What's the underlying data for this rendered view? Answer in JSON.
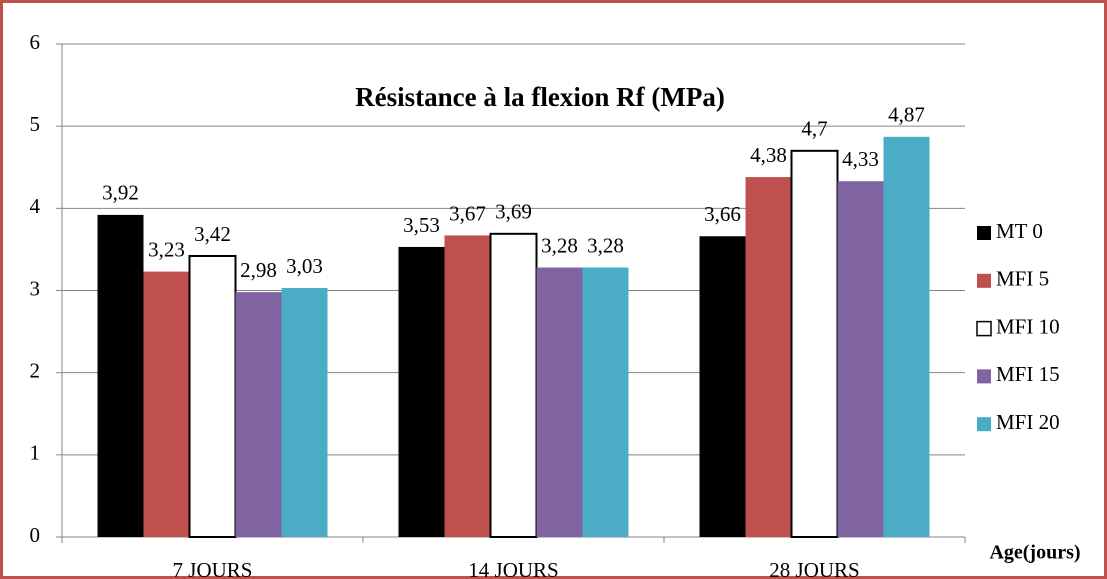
{
  "chart_data": {
    "type": "bar",
    "title": "Résistance à la flexion Rf (MPa)",
    "x_label": "Age(jours)",
    "categories": [
      "7 JOURS",
      "14 JOURS",
      "28 JOURS"
    ],
    "series": [
      {
        "name": "MT 0",
        "color": "#000000",
        "values": [
          3.92,
          3.53,
          3.66
        ],
        "value_labels": [
          "3,92",
          "3,53",
          "3,66"
        ]
      },
      {
        "name": "MFI 5",
        "color": "#c0504d",
        "values": [
          3.23,
          3.67,
          4.38
        ],
        "value_labels": [
          "3,23",
          "3,67",
          "4,38"
        ]
      },
      {
        "name": "MFI 10",
        "color": "#ffffff",
        "values": [
          3.42,
          3.69,
          4.7
        ],
        "value_labels": [
          "3,42",
          "3,69",
          "4,7"
        ]
      },
      {
        "name": "MFI 15",
        "color": "#8064a2",
        "values": [
          2.98,
          3.28,
          4.33
        ],
        "value_labels": [
          "2,98",
          "3,28",
          "4,33"
        ]
      },
      {
        "name": "MFI 20",
        "color": "#4bacc6",
        "values": [
          3.03,
          3.28,
          4.87
        ],
        "value_labels": [
          "3,03",
          "3,28",
          "4,87"
        ]
      }
    ],
    "ylim": [
      0,
      6
    ],
    "yticks": [
      0,
      1,
      2,
      3,
      4,
      5,
      6
    ],
    "grid": true,
    "legend": "right"
  }
}
